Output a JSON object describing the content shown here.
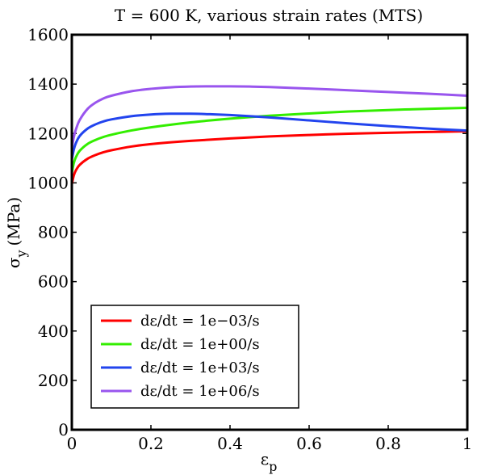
{
  "chart_data": {
    "type": "line",
    "title": "T = 600 K, various strain rates (MTS)",
    "xlabel": "ε",
    "xlabel_sub": "p",
    "ylabel": "σ",
    "ylabel_sub": "y",
    "ylabel_unit": "(MPa)",
    "xlim": [
      0,
      1
    ],
    "ylim": [
      0,
      1600
    ],
    "xticks": [
      0,
      0.2,
      0.4,
      0.6,
      0.8,
      1
    ],
    "xtick_labels": [
      "0",
      "0.2",
      "0.4",
      "0.6",
      "0.8",
      "1"
    ],
    "yticks": [
      0,
      200,
      400,
      600,
      800,
      1000,
      1200,
      1400,
      1600
    ],
    "ytick_labels": [
      "0",
      "200",
      "400",
      "600",
      "800",
      "1000",
      "1200",
      "1400",
      "1600"
    ],
    "grid": false,
    "legend_position": "bottom-left",
    "series": [
      {
        "name": "dε/dt = 1e−03/s",
        "color": "#ff0000",
        "x": [
          0,
          0.005,
          0.01,
          0.02,
          0.04,
          0.06,
          0.08,
          0.1,
          0.15,
          0.2,
          0.3,
          0.4,
          0.5,
          0.6,
          0.7,
          0.8,
          0.9,
          1.0
        ],
        "y": [
          995,
          1030,
          1050,
          1073,
          1098,
          1113,
          1124,
          1132,
          1147,
          1157,
          1170,
          1180,
          1188,
          1194,
          1199,
          1203,
          1206,
          1209
        ]
      },
      {
        "name": "dε/dt = 1e+00/s",
        "color": "#33ee00",
        "x": [
          0,
          0.005,
          0.01,
          0.02,
          0.04,
          0.06,
          0.08,
          0.1,
          0.15,
          0.2,
          0.3,
          0.4,
          0.5,
          0.6,
          0.7,
          0.8,
          0.9,
          1.0
        ],
        "y": [
          1040,
          1080,
          1103,
          1130,
          1158,
          1174,
          1186,
          1195,
          1212,
          1225,
          1245,
          1260,
          1272,
          1281,
          1289,
          1295,
          1300,
          1304
        ]
      },
      {
        "name": "dε/dt = 1e+03/s",
        "color": "#2244ee",
        "x": [
          0,
          0.005,
          0.01,
          0.02,
          0.04,
          0.06,
          0.08,
          0.1,
          0.15,
          0.2,
          0.25,
          0.3,
          0.35,
          0.4,
          0.5,
          0.6,
          0.7,
          0.8,
          0.9,
          1.0
        ],
        "y": [
          1095,
          1135,
          1160,
          1190,
          1220,
          1237,
          1249,
          1257,
          1270,
          1277,
          1280,
          1280,
          1278,
          1275,
          1265,
          1253,
          1241,
          1230,
          1220,
          1212
        ]
      },
      {
        "name": "dε/dt = 1e+06/s",
        "color": "#9955ee",
        "x": [
          0,
          0.005,
          0.01,
          0.02,
          0.04,
          0.06,
          0.08,
          0.1,
          0.15,
          0.2,
          0.25,
          0.3,
          0.35,
          0.4,
          0.45,
          0.5,
          0.6,
          0.7,
          0.8,
          0.9,
          1.0
        ],
        "y": [
          1140,
          1185,
          1215,
          1255,
          1300,
          1325,
          1342,
          1353,
          1371,
          1381,
          1387,
          1390,
          1391,
          1391,
          1390,
          1388,
          1382,
          1375,
          1368,
          1361,
          1353
        ]
      }
    ]
  }
}
